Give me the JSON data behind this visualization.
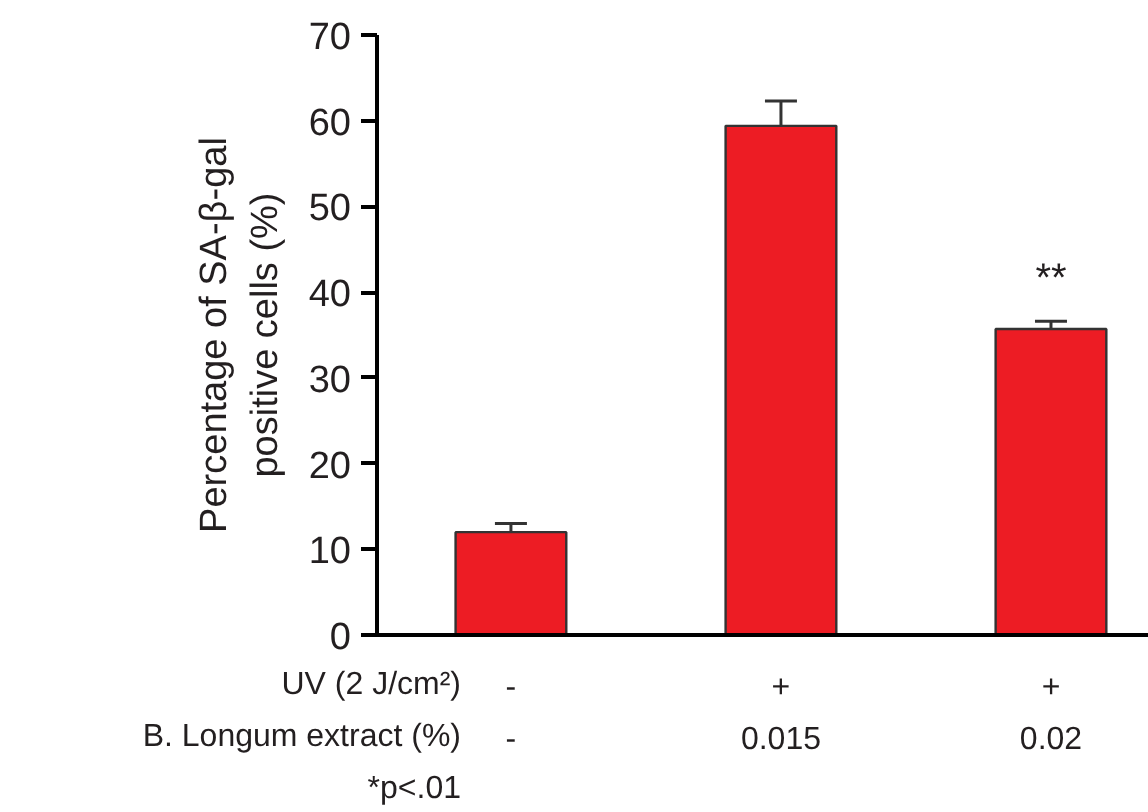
{
  "chart_data": {
    "type": "bar",
    "ylabel": "Percentage of SA-β-gal positive cells (%)",
    "categories": [
      "-\n-",
      "+\n0.015",
      "+\n0.02"
    ],
    "values": [
      12.0,
      59.4,
      35.7
    ],
    "errors": [
      1.0,
      2.9,
      0.9
    ],
    "value_labels": [
      null,
      null,
      "**"
    ],
    "color": "#ed1c24",
    "ylim": [
      0,
      70
    ],
    "yticks": [
      0,
      10,
      20,
      30,
      40,
      50,
      60,
      70
    ],
    "grid": false,
    "annotations": [
      "UV (2 J/cm²)",
      "B. Longum extract (%)",
      "*p<.01"
    ]
  }
}
